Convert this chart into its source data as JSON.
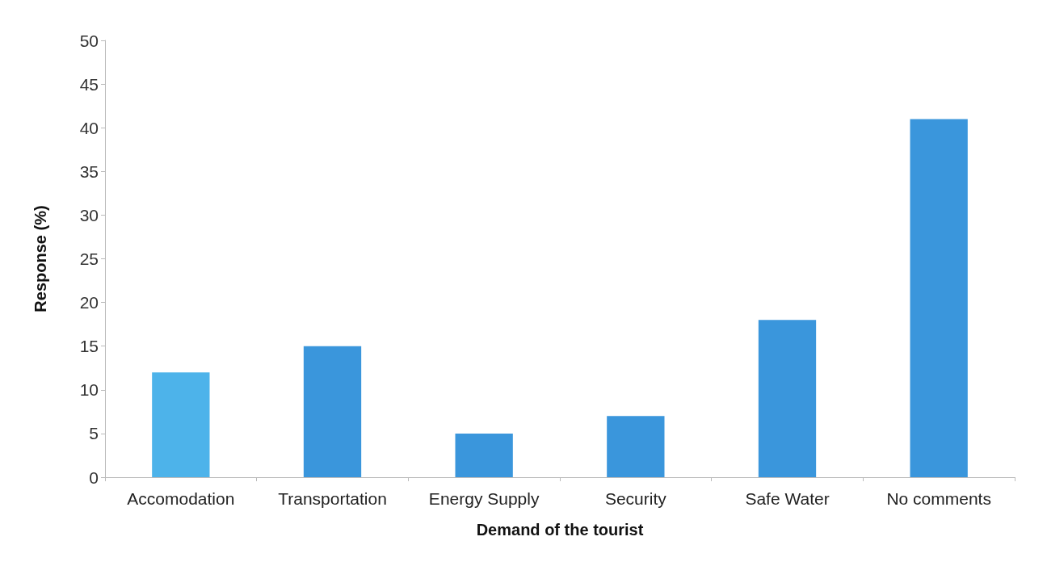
{
  "chart_data": {
    "type": "bar",
    "xlabel": "Demand of the tourist",
    "ylabel": "Response (%)",
    "categories": [
      "Accomodation",
      "Transportation",
      "Energy Supply",
      "Security",
      "Safe Water",
      "No comments"
    ],
    "values": [
      12,
      15,
      5,
      7,
      18,
      41
    ],
    "colors": [
      "#4db3ea",
      "#3a96dc",
      "#3a96dc",
      "#3a96dc",
      "#3a96dc",
      "#3a96dc"
    ],
    "ylim": [
      0,
      50
    ],
    "yticks": [
      0,
      5,
      10,
      15,
      20,
      25,
      30,
      35,
      40,
      45,
      50
    ],
    "grid": false
  }
}
